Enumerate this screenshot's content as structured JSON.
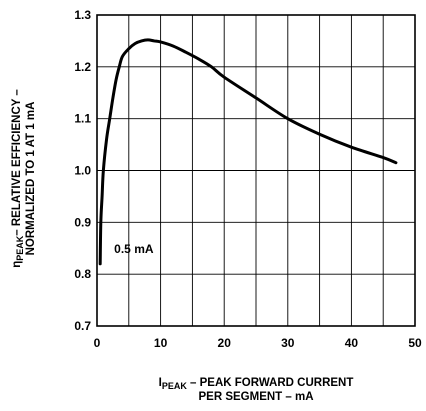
{
  "chart_data": {
    "type": "line",
    "xlim": [
      0,
      50
    ],
    "ylim": [
      0.7,
      1.3
    ],
    "x_ticks": [
      "0",
      "5",
      "10",
      "15",
      "20",
      "25",
      "30",
      "35",
      "40",
      "45",
      "50"
    ],
    "x_tick_values": [
      0,
      5,
      10,
      15,
      20,
      25,
      30,
      35,
      40,
      45,
      50
    ],
    "x_tick_labels": [
      "0",
      "10",
      "20",
      "30",
      "40",
      "50"
    ],
    "x_tick_label_values": [
      0,
      10,
      20,
      30,
      40,
      50
    ],
    "y_ticks": [
      "0.7",
      "0.8",
      "0.9",
      "1.0",
      "1.1",
      "1.2",
      "1.3"
    ],
    "y_tick_values": [
      0.7,
      0.8,
      0.9,
      1.0,
      1.1,
      1.2,
      1.3
    ],
    "grid": true,
    "xlabel": {
      "sym": "I",
      "sub": "PEAK",
      "line1": " – PEAK FORWARD CURRENT",
      "line2": "PER SEGMENT – mA"
    },
    "ylabel": {
      "sym": "η",
      "sub": "PEAK",
      "line1": "– RELATIVE EFFICIENCY –",
      "line2": "NORMALIZED TO 1 AT 1 mA"
    },
    "annotations": [
      {
        "text": "0.5 mA",
        "x": 0.5,
        "y": 0.82
      }
    ],
    "series": [
      {
        "color": "#000000",
        "x": [
          0.5,
          0.6,
          0.8,
          1.0,
          1.5,
          2.0,
          2.5,
          3.0,
          3.5,
          4.0,
          5.0,
          6.0,
          7.0,
          8.0,
          9.0,
          10.0,
          12.0,
          14.0,
          16.0,
          18.0,
          20.0,
          25.0,
          30.0,
          35.0,
          40.0,
          45.0,
          47.0
        ],
        "y": [
          0.82,
          0.9,
          0.95,
          1.0,
          1.06,
          1.1,
          1.14,
          1.175,
          1.2,
          1.22,
          1.235,
          1.245,
          1.25,
          1.252,
          1.25,
          1.248,
          1.24,
          1.228,
          1.215,
          1.2,
          1.18,
          1.14,
          1.1,
          1.07,
          1.045,
          1.025,
          1.015
        ]
      }
    ]
  }
}
